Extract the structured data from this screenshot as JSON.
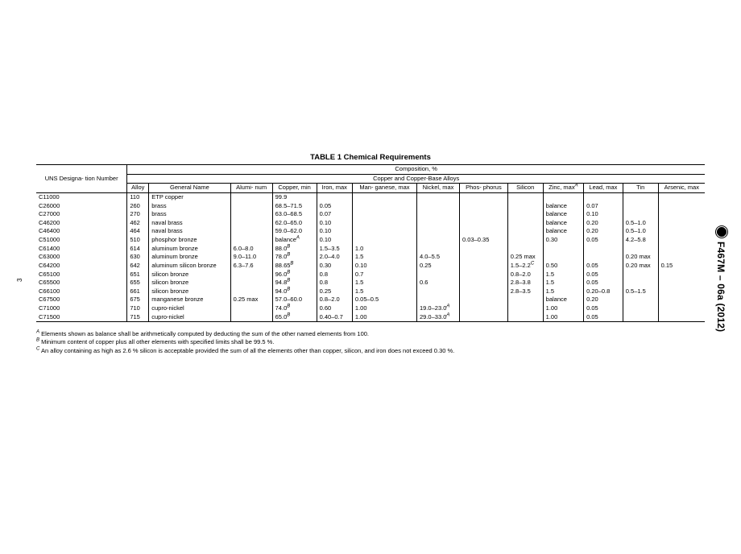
{
  "page_number_side": "3",
  "doc_id": "F467M – 06a (2012)",
  "table": {
    "title": "TABLE 1 Chemical Requirements",
    "super_header": "Composition, %",
    "group_header": "Copper and Copper-Base Alloys",
    "columns": [
      "UNS Designa-\ntion Number",
      "Alloy",
      "General Name",
      "Alumi-\nnum",
      "Copper,\nmin",
      "Iron,\nmax",
      "Man-\nganese,\nmax",
      "Nickel,\nmax",
      "Phos-\nphorus",
      "Silicon",
      "Zinc,\nmax",
      "Lead,\nmax",
      "Tin",
      "Arsenic,\nmax"
    ],
    "zinc_sup": "A",
    "rows": [
      {
        "uns": "C11000",
        "alloy": "110",
        "name": "ETP copper",
        "al": "",
        "cu": "99.9",
        "fe": "",
        "mn": "",
        "ni": "",
        "p": "",
        "si": "",
        "zn": "",
        "pb": "",
        "sn": "",
        "as": ""
      },
      {
        "uns": "C26000",
        "alloy": "260",
        "name": "brass",
        "al": "",
        "cu": "68.5–71.5",
        "fe": "0.05",
        "mn": "",
        "ni": "",
        "p": "",
        "si": "",
        "zn": "balance",
        "pb": "0.07",
        "sn": "",
        "as": ""
      },
      {
        "uns": "C27000",
        "alloy": "270",
        "name": "brass",
        "al": "",
        "cu": "63.0–68.5",
        "fe": "0.07",
        "mn": "",
        "ni": "",
        "p": "",
        "si": "",
        "zn": "balance",
        "pb": "0.10",
        "sn": "",
        "as": ""
      },
      {
        "uns": "C46200",
        "alloy": "462",
        "name": "naval brass",
        "al": "",
        "cu": "62.0–65.0",
        "fe": "0.10",
        "mn": "",
        "ni": "",
        "p": "",
        "si": "",
        "zn": "balance",
        "pb": "0.20",
        "sn": "0.5–1.0",
        "as": ""
      },
      {
        "uns": "C46400",
        "alloy": "464",
        "name": "naval brass",
        "al": "",
        "cu": "59.0–62.0",
        "fe": "0.10",
        "mn": "",
        "ni": "",
        "p": "",
        "si": "",
        "zn": "balance",
        "pb": "0.20",
        "sn": "0.5–1.0",
        "as": ""
      },
      {
        "uns": "C51000",
        "alloy": "510",
        "name": "phosphor bronze",
        "al": "",
        "cu": "balance",
        "cu_sup": "A",
        "fe": "0.10",
        "mn": "",
        "ni": "",
        "p": "0.03–0.35",
        "si": "",
        "zn": "0.30",
        "pb": "0.05",
        "sn": "4.2–5.8",
        "as": ""
      },
      {
        "uns": "C61400",
        "alloy": "614",
        "name": "aluminum bronze",
        "al": "6.0–8.0",
        "cu": "88.0",
        "cu_sup": "B",
        "fe": "1.5–3.5",
        "mn": "1.0",
        "ni": "",
        "p": "",
        "si": "",
        "zn": "",
        "pb": "",
        "sn": "",
        "as": ""
      },
      {
        "uns": "C63000",
        "alloy": "630",
        "name": "aluminum bronze",
        "al": "9.0–11.0",
        "cu": "78.0",
        "cu_sup": "B",
        "fe": "2.0–4.0",
        "mn": "1.5",
        "ni": "4.0–5.5",
        "p": "",
        "si": "0.25 max",
        "zn": "",
        "pb": "",
        "sn": "0.20 max",
        "as": ""
      },
      {
        "uns": "C64200",
        "alloy": "642",
        "name": "aluminum silicon bronze",
        "al": "6.3–7.6",
        "cu": "88.65",
        "cu_sup": "B",
        "fe": "0.30",
        "mn": "0.10",
        "ni": "0.25",
        "p": "",
        "si": "1.5–2.2",
        "si_sup": "C",
        "zn": "0.50",
        "pb": "0.05",
        "sn": "0.20 max",
        "as": "0.15"
      },
      {
        "uns": "C65100",
        "alloy": "651",
        "name": "silicon bronze",
        "al": "",
        "cu": "96.0",
        "cu_sup": "B",
        "fe": "0.8",
        "mn": "0.7",
        "ni": "",
        "p": "",
        "si": "0.8–2.0",
        "zn": "1.5",
        "pb": "0.05",
        "sn": "",
        "as": ""
      },
      {
        "uns": "C65500",
        "alloy": "655",
        "name": "silicon bronze",
        "al": "",
        "cu": "94.8",
        "cu_sup": "B",
        "fe": "0.8",
        "mn": "1.5",
        "ni": "0.6",
        "p": "",
        "si": "2.8–3.8",
        "zn": "1.5",
        "pb": "0.05",
        "sn": "",
        "as": ""
      },
      {
        "uns": "C66100",
        "alloy": "661",
        "name": "silicon bronze",
        "al": "",
        "cu": "94.0",
        "cu_sup": "B",
        "fe": "0.25",
        "mn": "1.5",
        "ni": "",
        "p": "",
        "si": "2.8–3.5",
        "zn": "1.5",
        "pb": "0.20–0.8",
        "sn": "0.5–1.5",
        "as": ""
      },
      {
        "uns": "C67500",
        "alloy": "675",
        "name": "manganese bronze",
        "al": "0.25 max",
        "cu": "57.0–60.0",
        "fe": "0.8–2.0",
        "mn": "0.05–0.5",
        "ni": "",
        "p": "",
        "si": "",
        "zn": "balance",
        "pb": "0.20",
        "sn": "",
        "as": ""
      },
      {
        "uns": "C71000",
        "alloy": "710",
        "name": "cupro-nickel",
        "al": "",
        "cu": "74.0",
        "cu_sup": "B",
        "fe": "0.60",
        "mn": "1.00",
        "ni": "19.0–23.0",
        "ni_sup": "A",
        "p": "",
        "si": "",
        "zn": "1.00",
        "pb": "0.05",
        "sn": "",
        "as": ""
      },
      {
        "uns": "C71500",
        "alloy": "715",
        "name": "cupro-nickel",
        "al": "",
        "cu": "65.0",
        "cu_sup": "B",
        "fe": "0.40–0.7",
        "mn": "1.00",
        "ni": "29.0–33.0",
        "ni_sup": "A",
        "p": "",
        "si": "",
        "zn": "1.00",
        "pb": "0.05",
        "sn": "",
        "as": ""
      }
    ]
  },
  "footnotes": {
    "a": "Elements shown as balance shall be arithmetically computed by deducting the sum of the other named elements from 100.",
    "b": "Minimum content of copper plus all other elements with specified limits shall be 99.5 %.",
    "c": "An alloy containing as high as 2.6 % silicon is acceptable provided the sum of all the elements other than copper, silicon, and iron does not exceed 0.30 %."
  }
}
